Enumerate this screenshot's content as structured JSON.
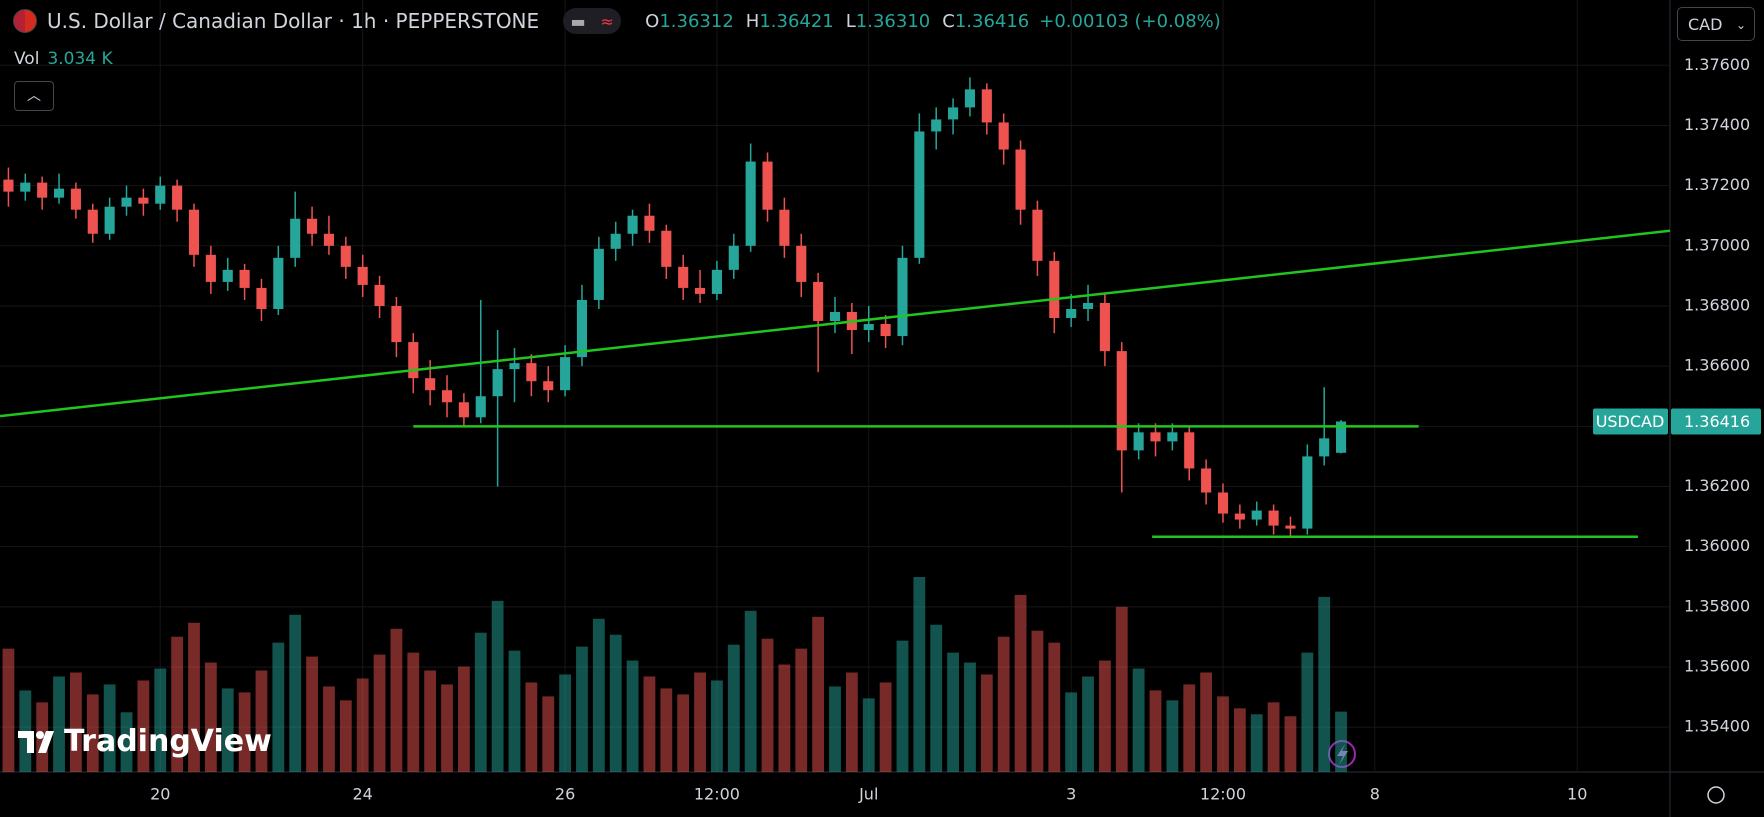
{
  "header": {
    "symbol_title": "U.S. Dollar / Canadian Dollar · 1h · PEPPERSTONE",
    "ohlc": [
      {
        "label": "O",
        "value": "1.36312"
      },
      {
        "label": "H",
        "value": "1.36421"
      },
      {
        "label": "L",
        "value": "1.36310"
      },
      {
        "label": "C",
        "value": "1.36416"
      }
    ],
    "change": "+0.00103 (+0.08%)",
    "volume_label": "Vol",
    "volume_value": "3.034 K",
    "currency": "CAD"
  },
  "watermark": "TradingView",
  "chart_data": {
    "type": "candlestick",
    "symbol": "USDCAD",
    "up_color": "#26a69a",
    "down_color": "#ef5350",
    "grid": true,
    "ylim": [
      1.35251,
      1.37817
    ],
    "yticks": [
      {
        "value": 1.376,
        "label": "1.37600"
      },
      {
        "value": 1.374,
        "label": "1.37400"
      },
      {
        "value": 1.372,
        "label": "1.37200"
      },
      {
        "value": 1.37,
        "label": "1.37000"
      },
      {
        "value": 1.368,
        "label": "1.36800"
      },
      {
        "value": 1.366,
        "label": "1.36600"
      },
      {
        "value": 1.364,
        "label": "1.36400"
      },
      {
        "value": 1.362,
        "label": "1.36200"
      },
      {
        "value": 1.36,
        "label": "1.36000"
      },
      {
        "value": 1.358,
        "label": "1.35800"
      },
      {
        "value": 1.356,
        "label": "1.35600"
      },
      {
        "value": 1.354,
        "label": "1.35400"
      }
    ],
    "categories": [
      null,
      null,
      null,
      null,
      null,
      null,
      null,
      null,
      null,
      "20",
      null,
      null,
      null,
      null,
      null,
      null,
      null,
      null,
      null,
      null,
      null,
      "24",
      null,
      null,
      null,
      null,
      null,
      null,
      null,
      null,
      null,
      null,
      null,
      "26",
      null,
      null,
      null,
      null,
      null,
      null,
      null,
      null,
      "12:00",
      null,
      null,
      null,
      null,
      null,
      null,
      null,
      null,
      "Jul",
      null,
      null,
      null,
      null,
      null,
      null,
      null,
      null,
      null,
      null,
      null,
      "3",
      null,
      null,
      null,
      null,
      null,
      null,
      null,
      null,
      "12:00",
      null,
      null,
      null,
      null,
      null,
      null,
      null,
      null,
      "8",
      null,
      null,
      null,
      null,
      null,
      null,
      null,
      null,
      null,
      null,
      null,
      "10",
      null,
      null,
      null,
      null,
      null
    ],
    "candles": [
      [
        1.3722,
        1.3726,
        1.3713,
        1.3718
      ],
      [
        1.3718,
        1.3724,
        1.3715,
        1.3721
      ],
      [
        1.3721,
        1.3723,
        1.3712,
        1.3716
      ],
      [
        1.3716,
        1.3724,
        1.3714,
        1.3719
      ],
      [
        1.3719,
        1.3721,
        1.3709,
        1.3712
      ],
      [
        1.3712,
        1.3714,
        1.3701,
        1.3704
      ],
      [
        1.3704,
        1.3716,
        1.3702,
        1.3713
      ],
      [
        1.3713,
        1.372,
        1.371,
        1.3716
      ],
      [
        1.3716,
        1.3719,
        1.371,
        1.3714
      ],
      [
        1.3714,
        1.3723,
        1.3712,
        1.372
      ],
      [
        1.372,
        1.3722,
        1.3708,
        1.3712
      ],
      [
        1.3712,
        1.3714,
        1.3693,
        1.3697
      ],
      [
        1.3697,
        1.37,
        1.3684,
        1.3688
      ],
      [
        1.3688,
        1.3696,
        1.3685,
        1.3692
      ],
      [
        1.3692,
        1.3694,
        1.3682,
        1.3686
      ],
      [
        1.3686,
        1.3689,
        1.3675,
        1.3679
      ],
      [
        1.3679,
        1.37,
        1.3677,
        1.3696
      ],
      [
        1.3696,
        1.3718,
        1.3693,
        1.3709
      ],
      [
        1.3709,
        1.3713,
        1.37,
        1.3704
      ],
      [
        1.3704,
        1.371,
        1.3697,
        1.37
      ],
      [
        1.37,
        1.3703,
        1.3689,
        1.3693
      ],
      [
        1.3693,
        1.3697,
        1.3683,
        1.3687
      ],
      [
        1.3687,
        1.369,
        1.3676,
        1.368
      ],
      [
        1.368,
        1.3683,
        1.3663,
        1.3668
      ],
      [
        1.3668,
        1.3671,
        1.3651,
        1.3656
      ],
      [
        1.3656,
        1.3662,
        1.3647,
        1.3652
      ],
      [
        1.3652,
        1.3657,
        1.3643,
        1.3648
      ],
      [
        1.3648,
        1.3651,
        1.364,
        1.3643
      ],
      [
        1.3643,
        1.3682,
        1.3641,
        1.365
      ],
      [
        1.365,
        1.3672,
        1.362,
        1.3659
      ],
      [
        1.3659,
        1.3666,
        1.3648,
        1.3661
      ],
      [
        1.3661,
        1.3664,
        1.365,
        1.3655
      ],
      [
        1.3655,
        1.366,
        1.3648,
        1.3652
      ],
      [
        1.3652,
        1.3667,
        1.365,
        1.3663
      ],
      [
        1.3663,
        1.3687,
        1.366,
        1.3682
      ],
      [
        1.3682,
        1.3703,
        1.3679,
        1.3699
      ],
      [
        1.3699,
        1.3708,
        1.3695,
        1.3704
      ],
      [
        1.3704,
        1.3712,
        1.37,
        1.371
      ],
      [
        1.371,
        1.3714,
        1.3701,
        1.3705
      ],
      [
        1.3705,
        1.3707,
        1.3689,
        1.3693
      ],
      [
        1.3693,
        1.3697,
        1.3682,
        1.3686
      ],
      [
        1.3686,
        1.3692,
        1.3681,
        1.3684
      ],
      [
        1.3684,
        1.3695,
        1.3682,
        1.3692
      ],
      [
        1.3692,
        1.3704,
        1.3689,
        1.37
      ],
      [
        1.37,
        1.3734,
        1.3698,
        1.3728
      ],
      [
        1.3728,
        1.3731,
        1.3708,
        1.3712
      ],
      [
        1.3712,
        1.3716,
        1.3696,
        1.37
      ],
      [
        1.37,
        1.3704,
        1.3683,
        1.3688
      ],
      [
        1.3688,
        1.3691,
        1.3658,
        1.3675
      ],
      [
        1.3675,
        1.3683,
        1.3671,
        1.3678
      ],
      [
        1.3678,
        1.3681,
        1.3664,
        1.3672
      ],
      [
        1.3672,
        1.368,
        1.3668,
        1.3674
      ],
      [
        1.3674,
        1.3677,
        1.3666,
        1.367
      ],
      [
        1.367,
        1.37,
        1.3667,
        1.3696
      ],
      [
        1.3696,
        1.3744,
        1.3694,
        1.3738
      ],
      [
        1.3738,
        1.3746,
        1.3732,
        1.3742
      ],
      [
        1.3742,
        1.3749,
        1.3737,
        1.3746
      ],
      [
        1.3746,
        1.3756,
        1.3743,
        1.3752
      ],
      [
        1.3752,
        1.3754,
        1.3737,
        1.3741
      ],
      [
        1.3741,
        1.3744,
        1.3727,
        1.3732
      ],
      [
        1.3732,
        1.3735,
        1.3707,
        1.3712
      ],
      [
        1.3712,
        1.3715,
        1.369,
        1.3695
      ],
      [
        1.3695,
        1.3698,
        1.3671,
        1.3676
      ],
      [
        1.3676,
        1.3684,
        1.3673,
        1.3679
      ],
      [
        1.3679,
        1.3687,
        1.3675,
        1.3681
      ],
      [
        1.3681,
        1.3684,
        1.366,
        1.3665
      ],
      [
        1.3665,
        1.3668,
        1.3618,
        1.3632
      ],
      [
        1.3632,
        1.3641,
        1.3629,
        1.3638
      ],
      [
        1.3638,
        1.3641,
        1.363,
        1.3635
      ],
      [
        1.3635,
        1.3641,
        1.3632,
        1.3638
      ],
      [
        1.3638,
        1.364,
        1.3622,
        1.3626
      ],
      [
        1.3626,
        1.3629,
        1.3614,
        1.3618
      ],
      [
        1.3618,
        1.3621,
        1.3608,
        1.3611
      ],
      [
        1.3611,
        1.3614,
        1.3606,
        1.3609
      ],
      [
        1.3609,
        1.3615,
        1.3607,
        1.3612
      ],
      [
        1.3612,
        1.3614,
        1.3604,
        1.3607
      ],
      [
        1.3607,
        1.361,
        1.3603,
        1.3606
      ],
      [
        1.3606,
        1.3634,
        1.3604,
        1.363
      ],
      [
        1.363,
        1.3653,
        1.3627,
        1.3636
      ],
      [
        1.36312,
        1.36421,
        1.3631,
        1.36416
      ],
      null,
      null,
      null,
      null,
      null,
      null,
      null,
      null,
      null,
      null,
      null,
      null,
      null,
      null,
      null,
      null,
      null,
      null,
      null
    ],
    "volumes": [
      6.2,
      4.1,
      3.5,
      4.8,
      5.0,
      3.9,
      4.4,
      3.0,
      4.6,
      5.2,
      6.8,
      7.5,
      5.5,
      4.2,
      4.0,
      5.1,
      6.5,
      7.9,
      5.8,
      4.3,
      3.6,
      4.7,
      5.9,
      7.2,
      6.0,
      5.1,
      4.4,
      5.3,
      7.0,
      8.6,
      6.1,
      4.5,
      3.8,
      4.9,
      6.3,
      7.7,
      6.9,
      5.6,
      4.8,
      4.2,
      3.9,
      5.0,
      4.6,
      6.4,
      8.1,
      6.7,
      5.4,
      6.2,
      7.8,
      4.3,
      5.0,
      3.7,
      4.5,
      6.6,
      9.8,
      7.4,
      6.0,
      5.5,
      4.9,
      6.8,
      8.9,
      7.1,
      6.5,
      4.0,
      4.8,
      5.6,
      8.3,
      5.2,
      4.1,
      3.6,
      4.4,
      5.0,
      3.8,
      3.2,
      2.9,
      3.5,
      2.8,
      6.0,
      8.8,
      3.034,
      null,
      null,
      null,
      null,
      null,
      null,
      null,
      null,
      null,
      null,
      null,
      null,
      null,
      null,
      null,
      null,
      null,
      null,
      null
    ],
    "lines": [
      {
        "color": "#22c41f",
        "x": [
          -0.5,
          98.5
        ],
        "y": [
          1.36434,
          1.3705
        ]
      },
      {
        "color": "#22c41f",
        "x": [
          24,
          83.6
        ],
        "y": [
          1.364,
          1.364
        ]
      },
      {
        "color": "#22c41f",
        "x": [
          67.8,
          96.6
        ],
        "y": [
          1.36033,
          1.36033
        ]
      }
    ]
  }
}
